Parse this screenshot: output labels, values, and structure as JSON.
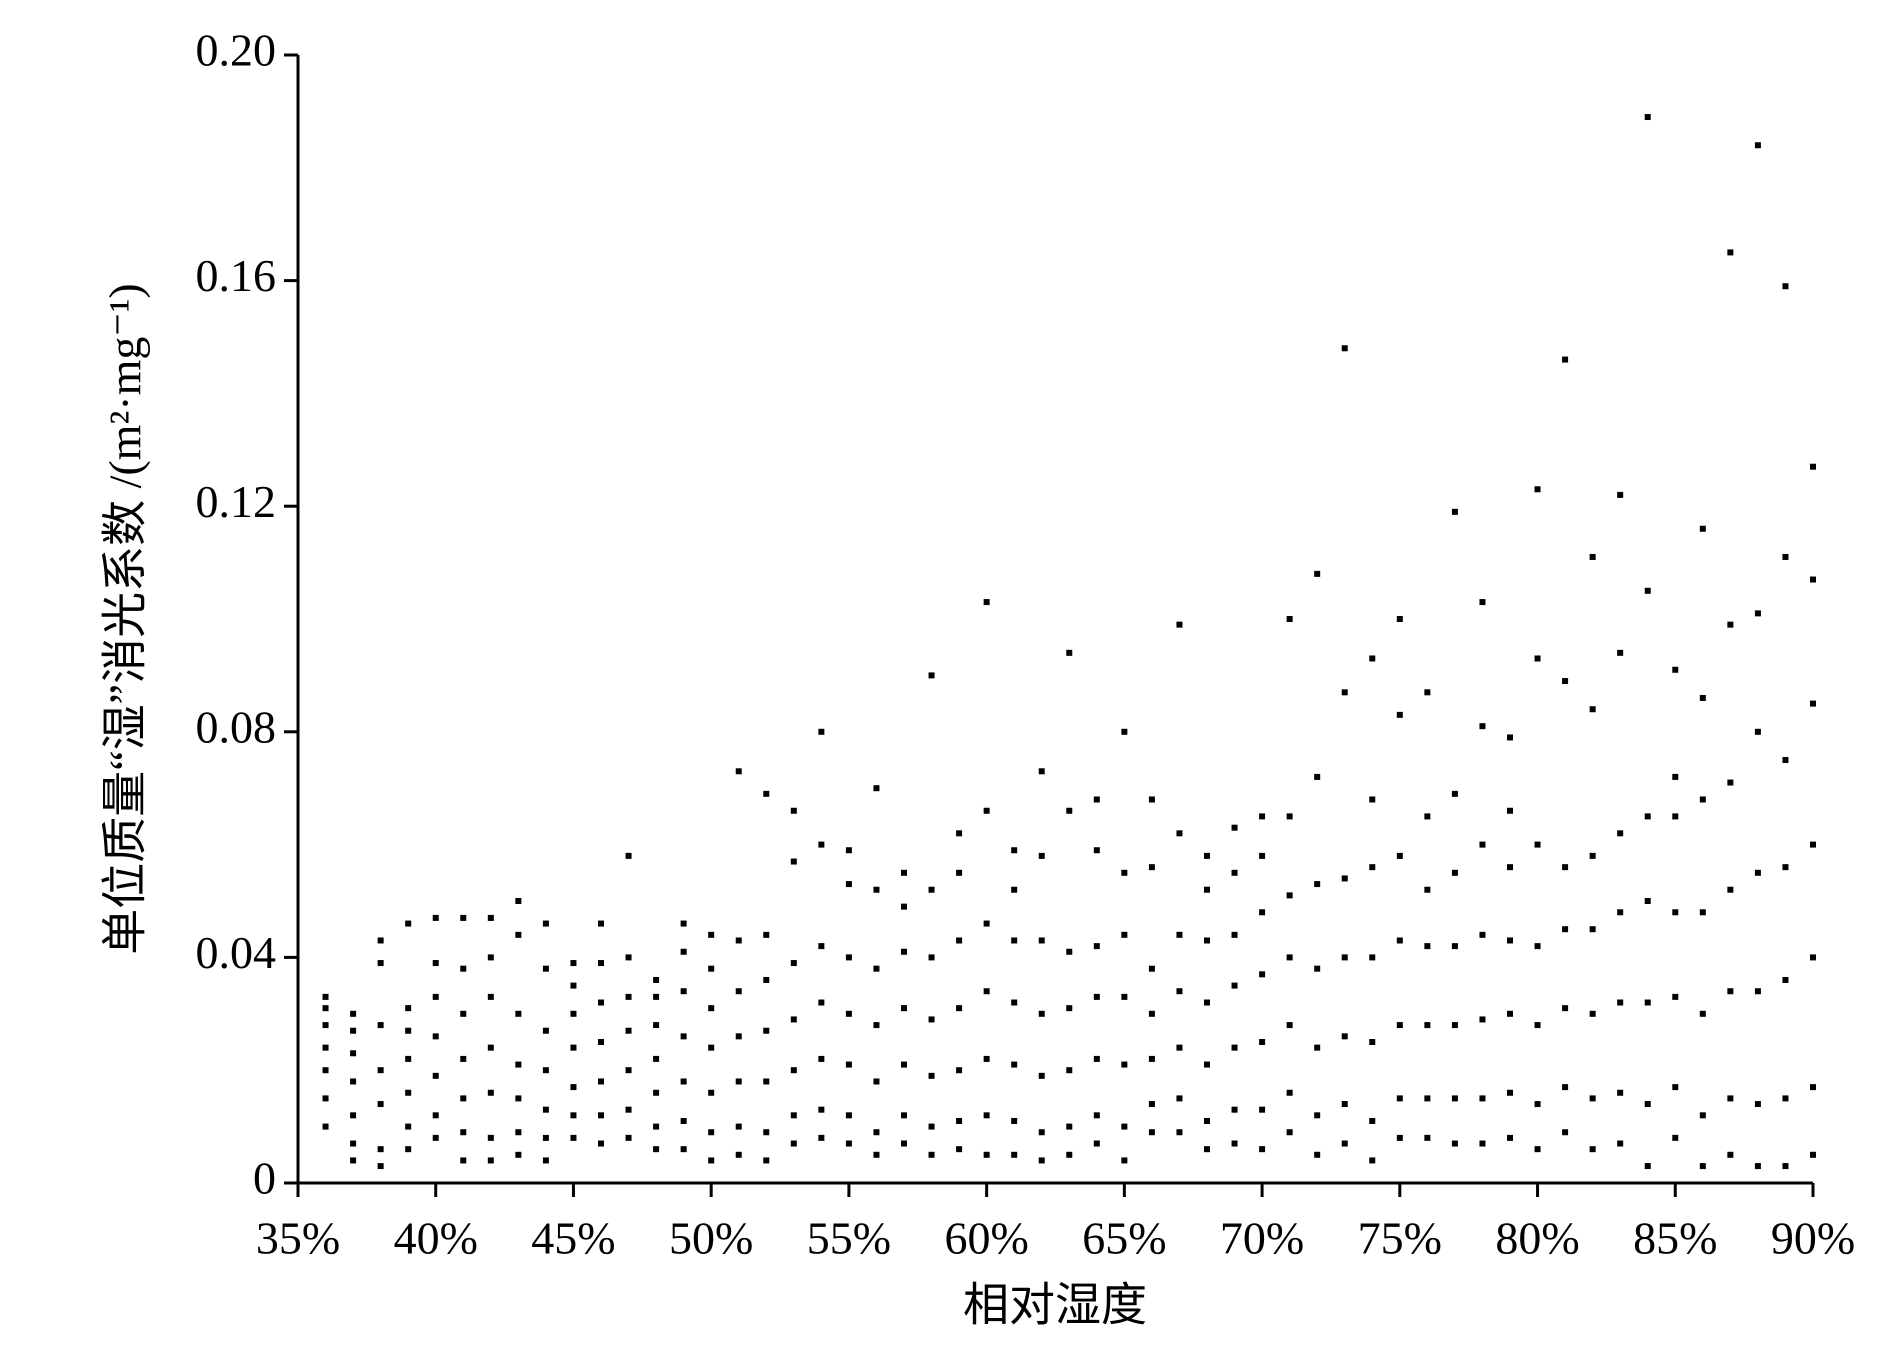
{
  "chart_data": {
    "type": "scatter",
    "x_label": "相对湿度",
    "y_label": "单位质量“湿”消光系数 /(m²·mg⁻¹)",
    "color": "#000000",
    "xlim": [
      35,
      90
    ],
    "ylim": [
      0,
      0.2
    ],
    "xticks": [
      {
        "value": 35,
        "label": "35%"
      },
      {
        "value": 40,
        "label": "40%"
      },
      {
        "value": 45,
        "label": "45%"
      },
      {
        "value": 50,
        "label": "50%"
      },
      {
        "value": 55,
        "label": "55%"
      },
      {
        "value": 60,
        "label": "60%"
      },
      {
        "value": 65,
        "label": "65%"
      },
      {
        "value": 70,
        "label": "70%"
      },
      {
        "value": 75,
        "label": "75%"
      },
      {
        "value": 80,
        "label": "80%"
      },
      {
        "value": 85,
        "label": "85%"
      },
      {
        "value": 90,
        "label": "90%"
      }
    ],
    "yticks": [
      0,
      0.04,
      0.08,
      0.12,
      0.16,
      {
        "value": 0.2,
        "label": "0.20"
      }
    ],
    "x": [
      36,
      36,
      36,
      36,
      36,
      36,
      36,
      37,
      37,
      37,
      37,
      37,
      37,
      37,
      38,
      38,
      38,
      38,
      38,
      38,
      38,
      39,
      39,
      39,
      39,
      39,
      39,
      39,
      40,
      40,
      40,
      40,
      40,
      40,
      40,
      41,
      41,
      41,
      41,
      41,
      41,
      41,
      42,
      42,
      42,
      42,
      42,
      42,
      42,
      43,
      43,
      43,
      43,
      43,
      43,
      43,
      44,
      44,
      44,
      44,
      44,
      44,
      44,
      45,
      45,
      45,
      45,
      45,
      45,
      45,
      46,
      46,
      46,
      46,
      46,
      46,
      46,
      47,
      47,
      47,
      47,
      47,
      47,
      47,
      48,
      48,
      48,
      48,
      48,
      48,
      48,
      49,
      49,
      49,
      49,
      49,
      49,
      49,
      50,
      50,
      50,
      50,
      50,
      50,
      50,
      51,
      51,
      51,
      51,
      51,
      51,
      51,
      52,
      52,
      52,
      52,
      52,
      52,
      52,
      53,
      53,
      53,
      53,
      53,
      53,
      53,
      54,
      54,
      54,
      54,
      54,
      54,
      54,
      55,
      55,
      55,
      55,
      55,
      55,
      55,
      56,
      56,
      56,
      56,
      56,
      56,
      56,
      57,
      57,
      57,
      57,
      57,
      57,
      57,
      58,
      58,
      58,
      58,
      58,
      58,
      58,
      59,
      59,
      59,
      59,
      59,
      59,
      59,
      60,
      60,
      60,
      60,
      60,
      60,
      60,
      61,
      61,
      61,
      61,
      61,
      61,
      61,
      62,
      62,
      62,
      62,
      62,
      62,
      62,
      63,
      63,
      63,
      63,
      63,
      63,
      63,
      64,
      64,
      64,
      64,
      64,
      64,
      64,
      65,
      65,
      65,
      65,
      65,
      65,
      65,
      66,
      66,
      66,
      66,
      66,
      66,
      66,
      67,
      67,
      67,
      67,
      67,
      67,
      67,
      68,
      68,
      68,
      68,
      68,
      68,
      68,
      69,
      69,
      69,
      69,
      69,
      69,
      69,
      70,
      70,
      70,
      70,
      70,
      70,
      70,
      71,
      71,
      71,
      71,
      71,
      71,
      71,
      72,
      72,
      72,
      72,
      72,
      72,
      72,
      73,
      73,
      73,
      73,
      73,
      73,
      73,
      74,
      74,
      74,
      74,
      74,
      74,
      74,
      75,
      75,
      75,
      75,
      75,
      75,
      75,
      76,
      76,
      76,
      76,
      76,
      76,
      76,
      77,
      77,
      77,
      77,
      77,
      77,
      77,
      78,
      78,
      78,
      78,
      78,
      78,
      78,
      79,
      79,
      79,
      79,
      79,
      79,
      79,
      80,
      80,
      80,
      80,
      80,
      80,
      80,
      81,
      81,
      81,
      81,
      81,
      81,
      81,
      82,
      82,
      82,
      82,
      82,
      82,
      82,
      83,
      83,
      83,
      83,
      83,
      83,
      83,
      84,
      84,
      84,
      84,
      84,
      84,
      84,
      85,
      85,
      85,
      85,
      85,
      85,
      85,
      86,
      86,
      86,
      86,
      86,
      86,
      86,
      87,
      87,
      87,
      87,
      87,
      87,
      87,
      88,
      88,
      88,
      88,
      88,
      88,
      88,
      89,
      89,
      89,
      89,
      89,
      89,
      89,
      90,
      90,
      90,
      90,
      90,
      90,
      90
    ],
    "values": [
      0.01,
      0.015,
      0.02,
      0.024,
      0.028,
      0.031,
      0.033,
      0.004,
      0.007,
      0.012,
      0.018,
      0.023,
      0.027,
      0.03,
      0.003,
      0.006,
      0.014,
      0.02,
      0.028,
      0.039,
      0.043,
      0.006,
      0.01,
      0.016,
      0.022,
      0.027,
      0.031,
      0.046,
      0.008,
      0.012,
      0.019,
      0.026,
      0.033,
      0.039,
      0.047,
      0.004,
      0.009,
      0.015,
      0.022,
      0.03,
      0.038,
      0.047,
      0.004,
      0.008,
      0.016,
      0.024,
      0.033,
      0.04,
      0.047,
      0.005,
      0.009,
      0.015,
      0.021,
      0.03,
      0.044,
      0.05,
      0.004,
      0.008,
      0.013,
      0.02,
      0.027,
      0.038,
      0.046,
      0.008,
      0.012,
      0.017,
      0.024,
      0.03,
      0.035,
      0.039,
      0.007,
      0.012,
      0.018,
      0.025,
      0.032,
      0.039,
      0.046,
      0.008,
      0.013,
      0.02,
      0.027,
      0.033,
      0.04,
      0.058,
      0.006,
      0.01,
      0.016,
      0.022,
      0.028,
      0.033,
      0.036,
      0.006,
      0.011,
      0.018,
      0.026,
      0.034,
      0.041,
      0.046,
      0.004,
      0.009,
      0.016,
      0.024,
      0.031,
      0.038,
      0.044,
      0.005,
      0.01,
      0.018,
      0.026,
      0.034,
      0.043,
      0.073,
      0.004,
      0.009,
      0.018,
      0.027,
      0.036,
      0.044,
      0.069,
      0.007,
      0.012,
      0.02,
      0.029,
      0.039,
      0.057,
      0.066,
      0.008,
      0.013,
      0.022,
      0.032,
      0.042,
      0.06,
      0.08,
      0.007,
      0.012,
      0.021,
      0.03,
      0.04,
      0.053,
      0.059,
      0.005,
      0.009,
      0.018,
      0.028,
      0.038,
      0.052,
      0.07,
      0.007,
      0.012,
      0.021,
      0.031,
      0.041,
      0.049,
      0.055,
      0.005,
      0.01,
      0.019,
      0.029,
      0.04,
      0.052,
      0.09,
      0.006,
      0.011,
      0.02,
      0.031,
      0.043,
      0.055,
      0.062,
      0.005,
      0.012,
      0.022,
      0.034,
      0.046,
      0.066,
      0.103,
      0.005,
      0.011,
      0.021,
      0.032,
      0.043,
      0.052,
      0.059,
      0.004,
      0.009,
      0.019,
      0.03,
      0.043,
      0.058,
      0.073,
      0.005,
      0.01,
      0.02,
      0.031,
      0.041,
      0.066,
      0.094,
      0.007,
      0.012,
      0.022,
      0.033,
      0.042,
      0.059,
      0.068,
      0.004,
      0.01,
      0.021,
      0.033,
      0.044,
      0.055,
      0.08,
      0.009,
      0.014,
      0.022,
      0.03,
      0.038,
      0.056,
      0.068,
      0.009,
      0.015,
      0.024,
      0.034,
      0.044,
      0.062,
      0.099,
      0.006,
      0.011,
      0.021,
      0.032,
      0.043,
      0.052,
      0.058,
      0.007,
      0.013,
      0.024,
      0.035,
      0.044,
      0.055,
      0.063,
      0.006,
      0.013,
      0.025,
      0.037,
      0.048,
      0.058,
      0.065,
      0.009,
      0.016,
      0.028,
      0.04,
      0.051,
      0.065,
      0.1,
      0.005,
      0.012,
      0.024,
      0.038,
      0.053,
      0.072,
      0.108,
      0.007,
      0.014,
      0.026,
      0.04,
      0.054,
      0.087,
      0.148,
      0.004,
      0.011,
      0.025,
      0.04,
      0.056,
      0.068,
      0.093,
      0.008,
      0.015,
      0.028,
      0.043,
      0.058,
      0.083,
      0.1,
      0.008,
      0.015,
      0.028,
      0.042,
      0.052,
      0.065,
      0.087,
      0.007,
      0.015,
      0.028,
      0.042,
      0.055,
      0.069,
      0.119,
      0.007,
      0.015,
      0.029,
      0.044,
      0.06,
      0.081,
      0.103,
      0.008,
      0.016,
      0.03,
      0.043,
      0.056,
      0.066,
      0.079,
      0.006,
      0.014,
      0.028,
      0.042,
      0.06,
      0.093,
      0.123,
      0.009,
      0.017,
      0.031,
      0.045,
      0.056,
      0.089,
      0.146,
      0.006,
      0.015,
      0.03,
      0.045,
      0.058,
      0.084,
      0.111,
      0.007,
      0.016,
      0.032,
      0.048,
      0.062,
      0.094,
      0.122,
      0.003,
      0.014,
      0.032,
      0.05,
      0.065,
      0.105,
      0.189,
      0.008,
      0.017,
      0.033,
      0.048,
      0.065,
      0.072,
      0.091,
      0.003,
      0.012,
      0.03,
      0.048,
      0.068,
      0.086,
      0.116,
      0.005,
      0.015,
      0.034,
      0.052,
      0.071,
      0.099,
      0.165,
      0.003,
      0.014,
      0.034,
      0.055,
      0.08,
      0.101,
      0.184,
      0.003,
      0.015,
      0.036,
      0.056,
      0.075,
      0.111,
      0.159,
      0.005,
      0.017,
      0.04,
      0.06,
      0.085,
      0.107,
      0.127
    ]
  }
}
